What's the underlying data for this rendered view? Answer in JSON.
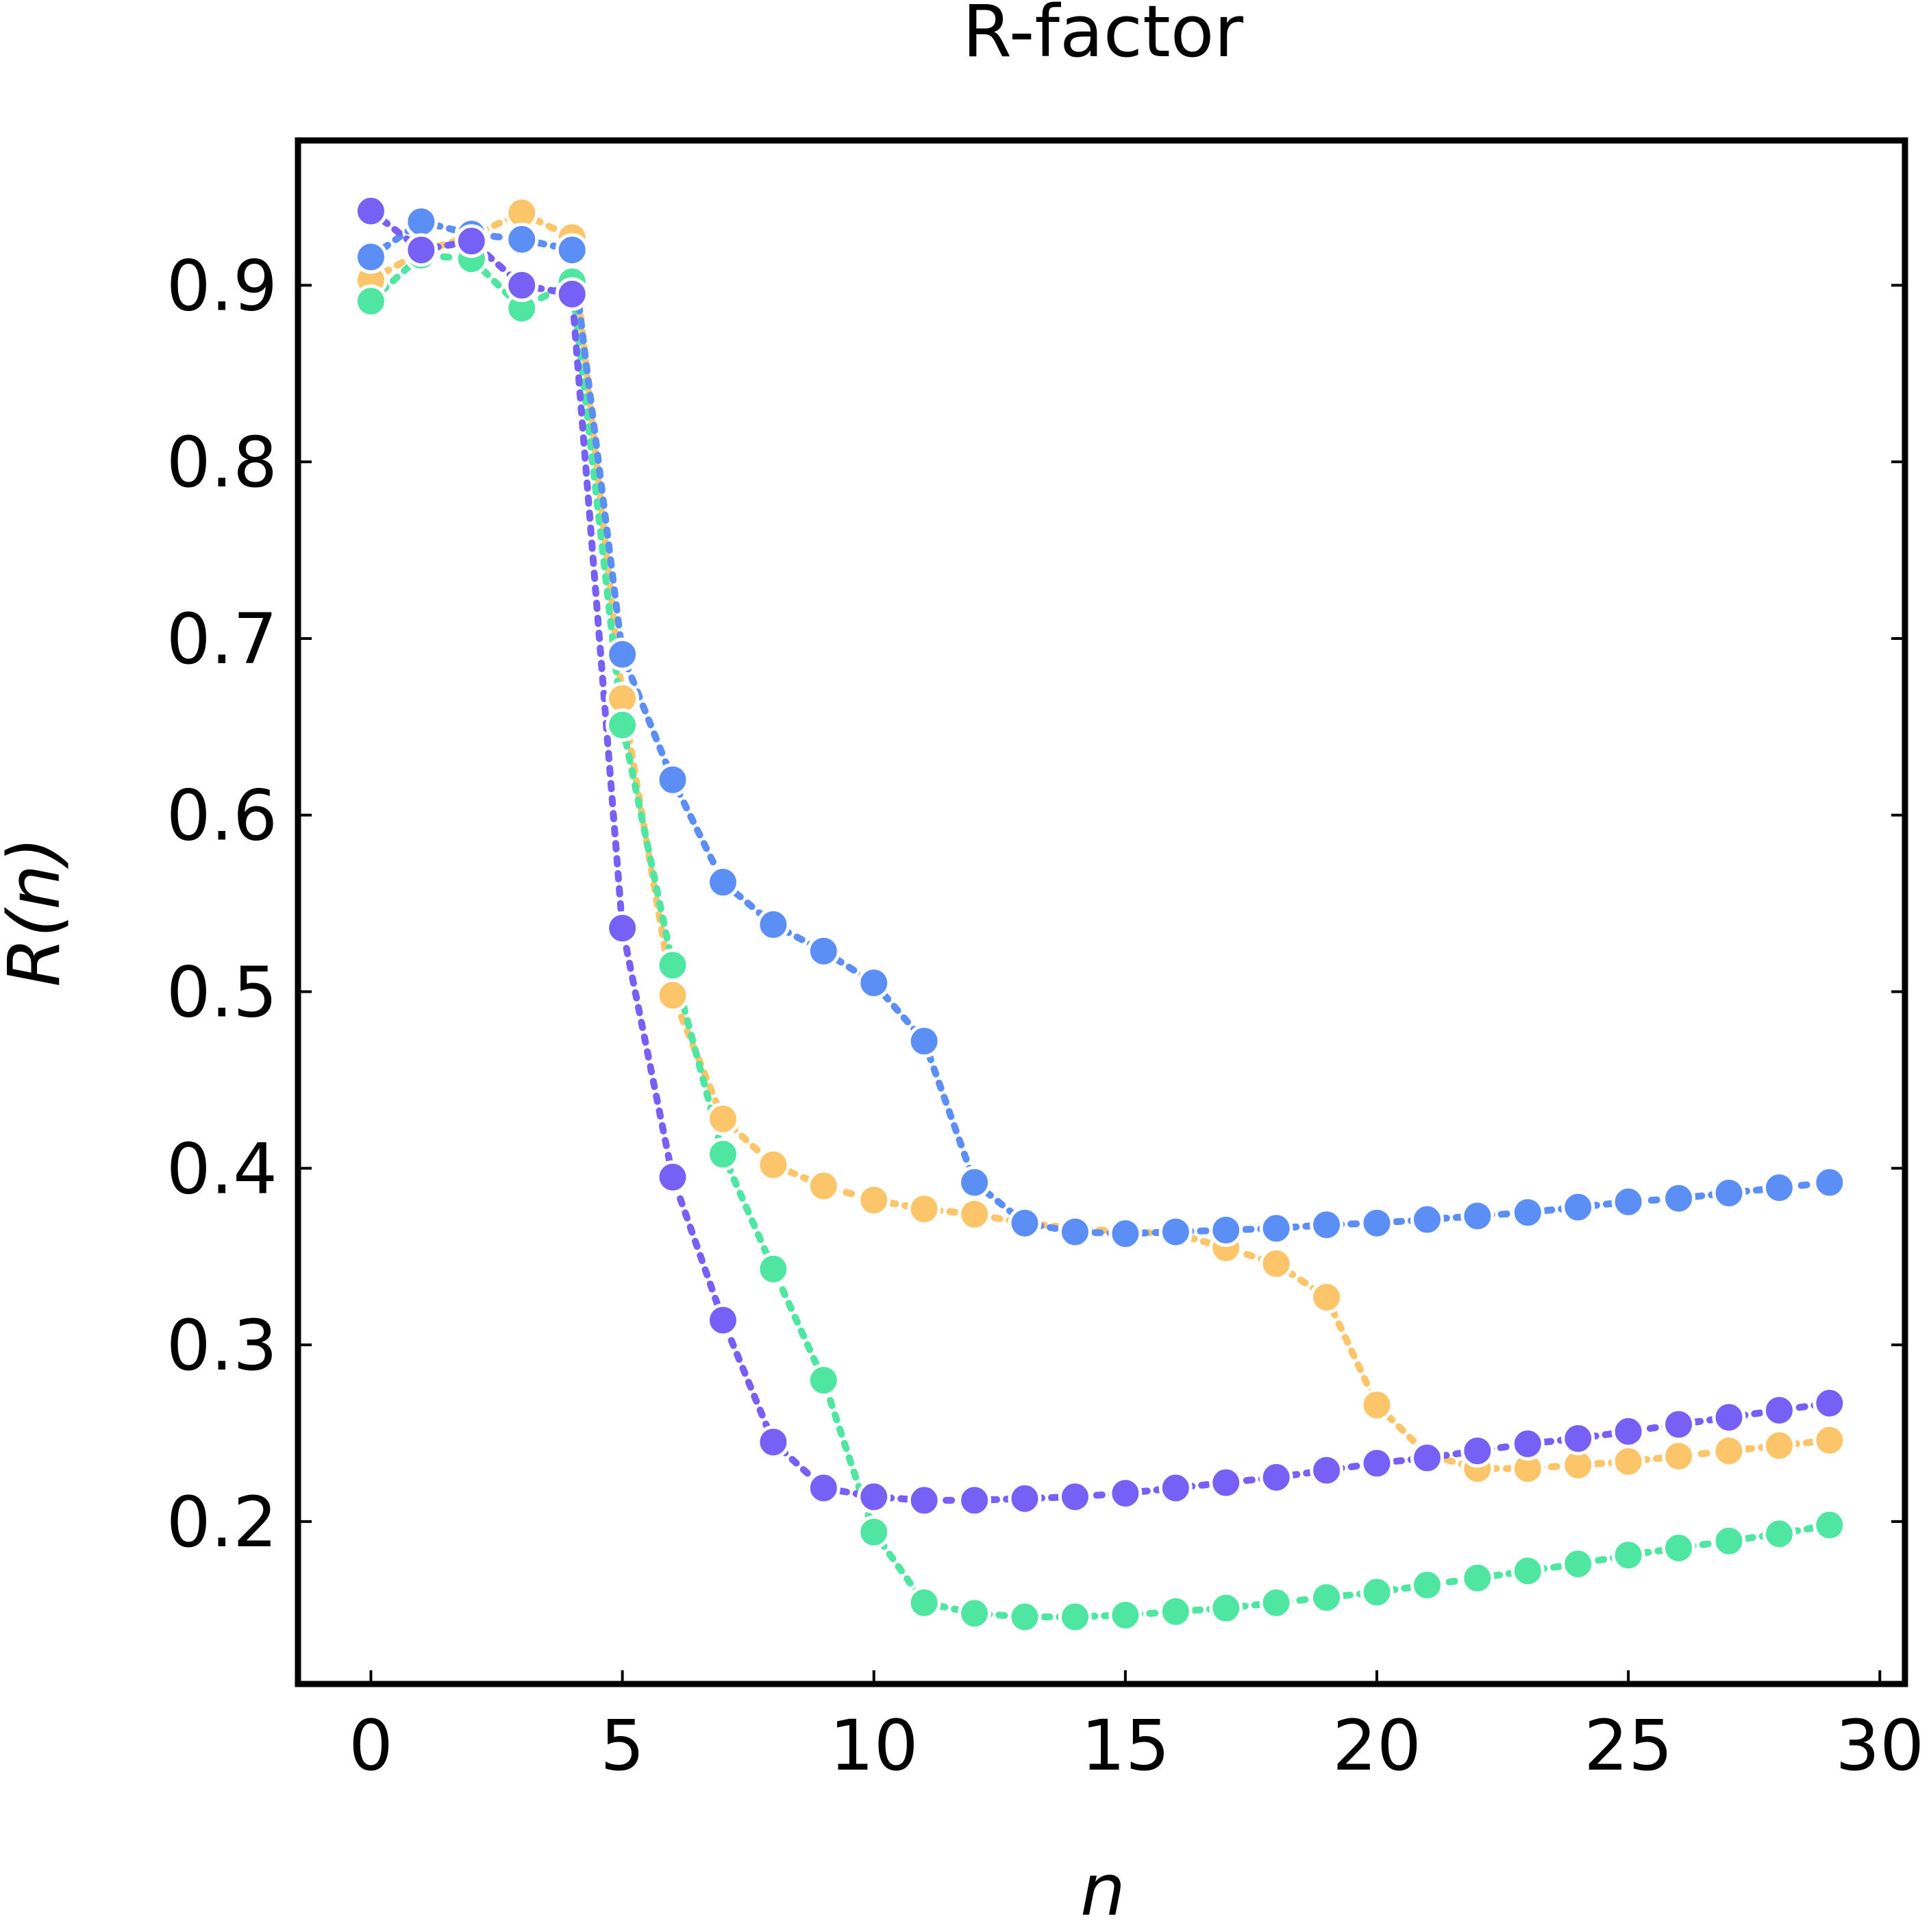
{
  "chart_data": {
    "type": "line",
    "title": "R-factor",
    "xlabel": "n",
    "ylabel": "R(n)",
    "xlim": [
      -1.45,
      30.5
    ],
    "ylim": [
      0.108,
      0.982
    ],
    "xticks": [
      0,
      5,
      10,
      15,
      20,
      25,
      30
    ],
    "yticks": [
      0.2,
      0.3,
      0.4,
      0.5,
      0.6,
      0.7,
      0.8,
      0.9
    ],
    "xtick_labels": [
      "0",
      "5",
      "10",
      "15",
      "20",
      "25",
      "30"
    ],
    "ytick_labels": [
      "0.2",
      "0.3",
      "0.4",
      "0.5",
      "0.6",
      "0.7",
      "0.8",
      "0.9"
    ],
    "grid": false,
    "line_style": "dotted",
    "x": [
      0,
      1,
      2,
      3,
      4,
      5,
      6,
      7,
      8,
      9,
      10,
      11,
      12,
      13,
      14,
      15,
      16,
      17,
      18,
      19,
      20,
      21,
      22,
      23,
      24,
      25,
      26,
      27,
      28,
      29
    ],
    "series": [
      {
        "color": "#fdc56a",
        "values": [
          0.903,
          0.919,
          0.928,
          0.941,
          0.927,
          0.666,
          0.498,
          0.428,
          0.402,
          0.39,
          0.382,
          0.377,
          0.374,
          0.369,
          0.366,
          0.364,
          0.363,
          0.355,
          0.346,
          0.327,
          0.266,
          0.238,
          0.23,
          0.23,
          0.232,
          0.234,
          0.237,
          0.24,
          0.243,
          0.246
        ]
      },
      {
        "color": "#4ee6a0",
        "values": [
          0.891,
          0.917,
          0.915,
          0.887,
          0.902,
          0.651,
          0.515,
          0.408,
          0.343,
          0.28,
          0.194,
          0.154,
          0.148,
          0.146,
          0.146,
          0.147,
          0.149,
          0.151,
          0.154,
          0.157,
          0.16,
          0.164,
          0.168,
          0.172,
          0.176,
          0.181,
          0.185,
          0.189,
          0.193,
          0.198
        ]
      },
      {
        "color": "#5b8ff6",
        "values": [
          0.916,
          0.936,
          0.929,
          0.926,
          0.92,
          0.691,
          0.62,
          0.562,
          0.538,
          0.523,
          0.505,
          0.472,
          0.392,
          0.369,
          0.364,
          0.363,
          0.364,
          0.365,
          0.366,
          0.368,
          0.369,
          0.371,
          0.373,
          0.375,
          0.378,
          0.381,
          0.383,
          0.386,
          0.389,
          0.392
        ]
      },
      {
        "color": "#7660f6",
        "values": [
          0.942,
          0.92,
          0.925,
          0.9,
          0.895,
          0.536,
          0.395,
          0.314,
          0.245,
          0.219,
          0.214,
          0.212,
          0.212,
          0.213,
          0.214,
          0.216,
          0.219,
          0.222,
          0.225,
          0.229,
          0.233,
          0.236,
          0.24,
          0.244,
          0.247,
          0.251,
          0.255,
          0.259,
          0.263,
          0.267
        ]
      }
    ]
  }
}
